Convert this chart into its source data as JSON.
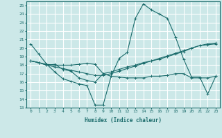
{
  "xlabel": "Humidex (Indice chaleur)",
  "ylabel": "",
  "xlim": [
    -0.5,
    23.5
  ],
  "ylim": [
    13,
    25.5
  ],
  "yticks": [
    13,
    14,
    15,
    16,
    17,
    18,
    19,
    20,
    21,
    22,
    23,
    24,
    25
  ],
  "xticks": [
    0,
    1,
    2,
    3,
    4,
    5,
    6,
    7,
    8,
    9,
    10,
    11,
    12,
    13,
    14,
    15,
    16,
    17,
    18,
    19,
    20,
    21,
    22,
    23
  ],
  "bg_color": "#cce8e8",
  "grid_color": "#ffffff",
  "line_color": "#1a6b6b",
  "lines": [
    {
      "x": [
        0,
        1,
        2,
        3,
        4,
        5,
        6,
        7,
        8,
        9,
        10,
        11,
        12,
        13,
        14,
        15,
        16,
        17,
        18,
        19,
        20,
        21,
        22,
        23
      ],
      "y": [
        20.5,
        19.3,
        18.1,
        17.2,
        16.4,
        16.1,
        15.8,
        15.6,
        13.3,
        13.3,
        16.7,
        18.8,
        19.5,
        23.5,
        25.2,
        24.5,
        24.0,
        23.5,
        21.3,
        18.7,
        16.6,
        16.6,
        14.6,
        16.7
      ]
    },
    {
      "x": [
        0,
        1,
        2,
        3,
        4,
        5,
        6,
        7,
        8,
        9,
        10,
        11,
        12,
        13,
        14,
        15,
        16,
        17,
        18,
        19,
        20,
        21,
        22,
        23
      ],
      "y": [
        18.5,
        18.3,
        18.1,
        18.0,
        18.0,
        18.0,
        18.1,
        18.2,
        18.1,
        17.0,
        17.2,
        17.5,
        17.8,
        18.0,
        18.3,
        18.5,
        18.7,
        19.0,
        19.3,
        19.6,
        20.0,
        20.3,
        20.5,
        20.6
      ]
    },
    {
      "x": [
        0,
        1,
        2,
        3,
        4,
        5,
        6,
        7,
        8,
        9,
        10,
        11,
        12,
        13,
        14,
        15,
        16,
        17,
        18,
        19,
        20,
        21,
        22,
        23
      ],
      "y": [
        18.5,
        18.3,
        18.0,
        18.1,
        17.5,
        17.3,
        16.5,
        16.2,
        16.0,
        17.0,
        16.7,
        16.6,
        16.5,
        16.5,
        16.5,
        16.7,
        16.7,
        16.8,
        17.0,
        17.0,
        16.5,
        16.5,
        16.5,
        16.7
      ]
    },
    {
      "x": [
        0,
        1,
        2,
        3,
        4,
        5,
        6,
        7,
        8,
        9,
        10,
        11,
        12,
        13,
        14,
        15,
        16,
        17,
        18,
        19,
        20,
        21,
        22,
        23
      ],
      "y": [
        18.5,
        18.3,
        18.0,
        17.8,
        17.6,
        17.4,
        17.2,
        17.0,
        16.8,
        16.8,
        17.0,
        17.3,
        17.6,
        17.9,
        18.2,
        18.5,
        18.8,
        19.1,
        19.4,
        19.7,
        20.0,
        20.3,
        20.4,
        20.5
      ]
    }
  ]
}
